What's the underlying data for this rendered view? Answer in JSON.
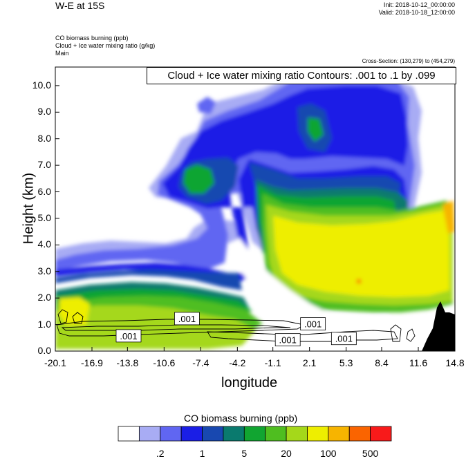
{
  "header": {
    "title": "W-E at 15S",
    "init": "Init: 2018-10-12_00:00:00",
    "valid": "Valid: 2018-10-18_12:00:00"
  },
  "fields": {
    "line1": "CO biomass burning   (ppb)",
    "line2": "Cloud + Ice water mixing ratio   (g/kg)",
    "line3": "Main"
  },
  "cross_section": "Cross-Section: (130,279) to (454,279)",
  "contour_note": "Cloud + Ice water mixing ratio Contours: .001 to .1 by .099",
  "colors": {
    "levels": [
      "#ffffff",
      "#a8acf4",
      "#6066f2",
      "#1a1ee6",
      "#1848b0",
      "#0a7a6e",
      "#11a531",
      "#4fbe20",
      "#a5d81a",
      "#eeee00",
      "#f7b400",
      "#fa6400",
      "#f81a1a"
    ],
    "terrain": "#000000"
  },
  "chart_data": {
    "type": "heatmap",
    "title": "W-E at 15S",
    "xlabel": "longitude",
    "ylabel": "Height (km)",
    "xlim": [
      -20.1,
      14.8
    ],
    "ylim": [
      0.0,
      10.7
    ],
    "xticks": [
      "-20.1",
      "-16.9",
      "-13.8",
      "-10.6",
      "-7.4",
      "-4.2",
      "-1.1",
      "2.1",
      "5.3",
      "8.4",
      "11.6",
      "14.8"
    ],
    "yticks": [
      "0.0",
      "1.0",
      "2.0",
      "3.0",
      "4.0",
      "5.0",
      "6.0",
      "7.0",
      "8.0",
      "9.0",
      "10.0"
    ],
    "colorbar": {
      "title": "CO biomass burning   (ppb)",
      "labels": [
        ".2",
        "1",
        "5",
        "20",
        "100",
        "500"
      ]
    },
    "contour_labels": [
      {
        "text": ".001",
        "x": -8.6,
        "y": 1.2
      },
      {
        "text": ".001",
        "x": -13.7,
        "y": 0.55
      },
      {
        "text": ".001",
        "x": 2.4,
        "y": 1.0
      },
      {
        "text": ".001",
        "x": 0.2,
        "y": 0.4
      },
      {
        "text": ".001",
        "x": 5.1,
        "y": 0.45
      }
    ]
  }
}
